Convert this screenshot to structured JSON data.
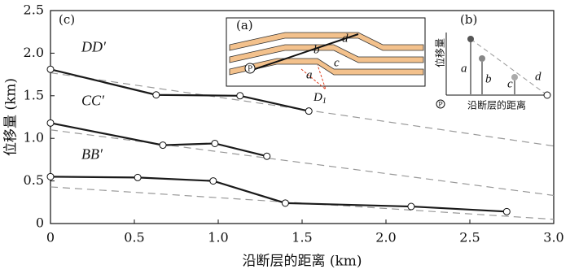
{
  "chart_data": {
    "type": "line",
    "panel_label": "(c)",
    "xlabel": "沿断层的距离 (km)",
    "ylabel": "位移量 (km)",
    "xlim": [
      0,
      3.0
    ],
    "ylim": [
      0,
      2.5
    ],
    "xticks": [
      0,
      0.5,
      {
        "value": 1,
        "label": "1.0"
      },
      1.5,
      {
        "value": 2,
        "label": "2.0"
      },
      2.5,
      {
        "value": 3,
        "label": "3.0"
      }
    ],
    "yticks": [
      0,
      0.5,
      {
        "value": 1,
        "label": "1.0"
      },
      1.5,
      {
        "value": 2,
        "label": "2.0"
      },
      2.5
    ],
    "series": [
      {
        "name": "DD′",
        "color": "#1a1a1a",
        "x": [
          0,
          0.63,
          1.13,
          1.54
        ],
        "values": [
          1.81,
          1.51,
          1.5,
          1.32
        ]
      },
      {
        "name": "CC′",
        "color": "#1a1a1a",
        "x": [
          0,
          0.67,
          0.98,
          1.29
        ],
        "values": [
          1.18,
          0.92,
          0.94,
          0.79
        ]
      },
      {
        "name": "BB′",
        "color": "#1a1a1a",
        "x": [
          0,
          0.52,
          0.97,
          1.4,
          2.15,
          2.72
        ],
        "values": [
          0.55,
          0.54,
          0.5,
          0.24,
          0.2,
          0.14
        ]
      },
      {
        "color": "#999999",
        "dashed": true,
        "x": [
          0,
          3.0
        ],
        "values": [
          1.77,
          0.91
        ]
      },
      {
        "color": "#999999",
        "dashed": true,
        "x": [
          0,
          3.0
        ],
        "values": [
          1.1,
          0.33
        ]
      },
      {
        "color": "#999999",
        "dashed": true,
        "x": [
          0,
          3.0
        ],
        "values": [
          0.43,
          0.05
        ]
      }
    ]
  },
  "inset_a": {
    "label": "(a)",
    "b": "b",
    "d": "d",
    "c": "c",
    "a": "a",
    "p": "P",
    "fault": "D",
    "fault_sub": "1"
  },
  "inset_b": {
    "label": "(b)",
    "ylabel": "位移量",
    "xlabel": "沿断层的距离",
    "a": "a",
    "b": "b",
    "c": "c",
    "d": "d",
    "p": "P"
  }
}
